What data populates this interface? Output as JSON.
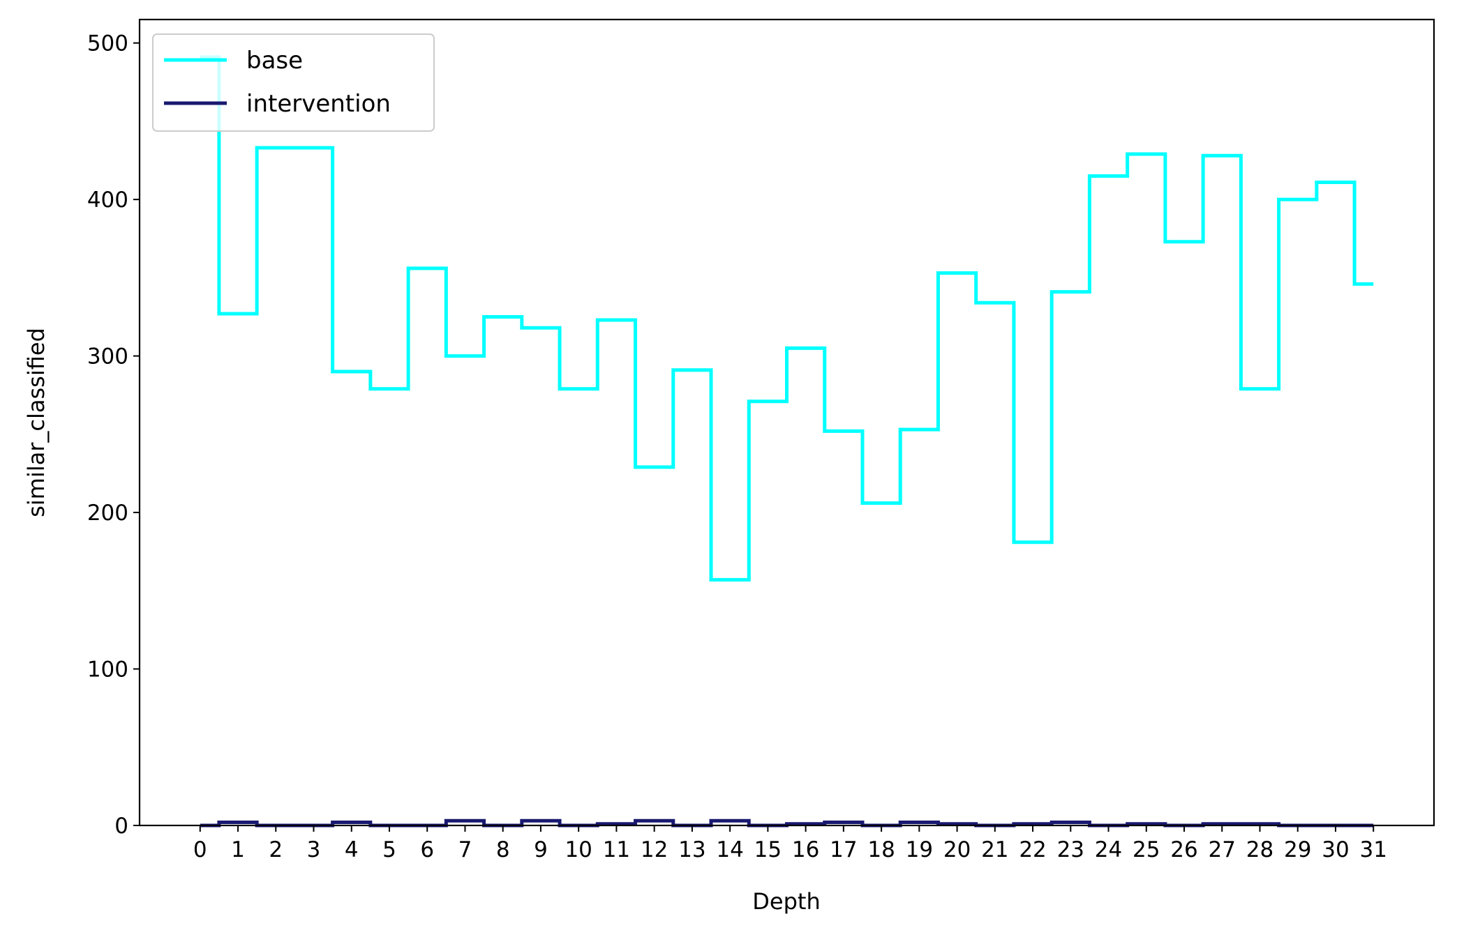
{
  "chart_data": {
    "type": "line",
    "drawstyle": "steps-mid",
    "title": "",
    "xlabel": "Depth",
    "ylabel": "similar_classified",
    "x": [
      0,
      1,
      2,
      3,
      4,
      5,
      6,
      7,
      8,
      9,
      10,
      11,
      12,
      13,
      14,
      15,
      16,
      17,
      18,
      19,
      20,
      21,
      22,
      23,
      24,
      25,
      26,
      27,
      28,
      29,
      30,
      31
    ],
    "xticks": [
      "0",
      "1",
      "2",
      "3",
      "4",
      "5",
      "6",
      "7",
      "8",
      "9",
      "10",
      "11",
      "12",
      "13",
      "14",
      "15",
      "16",
      "17",
      "18",
      "19",
      "20",
      "21",
      "22",
      "23",
      "24",
      "25",
      "26",
      "27",
      "28",
      "29",
      "30",
      "31"
    ],
    "yticks": [
      "0",
      "100",
      "200",
      "300",
      "400",
      "500"
    ],
    "ylim": [
      0,
      515
    ],
    "xlim": [
      -1.6,
      32.6
    ],
    "grid": false,
    "legend_position": "upper-left",
    "series": [
      {
        "name": "base",
        "color": "#00ffff",
        "values": [
          491,
          327,
          433,
          433,
          290,
          279,
          356,
          300,
          325,
          318,
          279,
          323,
          229,
          291,
          157,
          271,
          305,
          252,
          206,
          253,
          353,
          334,
          181,
          341,
          415,
          429,
          373,
          428,
          279,
          400,
          411,
          346
        ]
      },
      {
        "name": "intervention",
        "color": "#191970",
        "values": [
          0,
          2,
          0,
          0,
          2,
          0,
          0,
          3,
          0,
          3,
          0,
          1,
          3,
          0,
          3,
          0,
          1,
          2,
          0,
          2,
          1,
          0,
          1,
          2,
          0,
          1,
          0,
          1,
          1,
          0,
          0,
          0
        ]
      }
    ]
  }
}
